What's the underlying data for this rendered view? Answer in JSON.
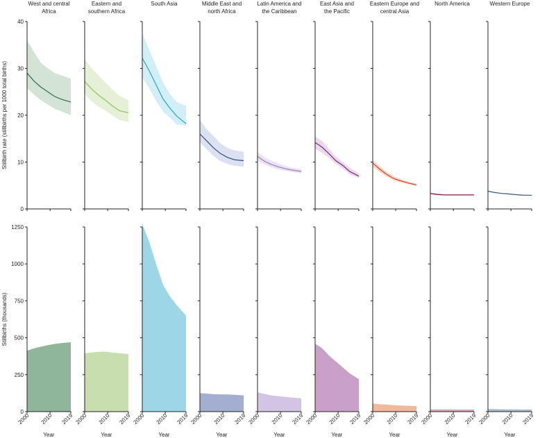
{
  "chart_data": {
    "type": "area",
    "x": [
      2000,
      2003,
      2006,
      2009,
      2012,
      2015,
      2019
    ],
    "xticks": [
      "2000",
      "2010",
      "2019"
    ],
    "xlabel": "Year",
    "regions": [
      {
        "name": "West and central Africa",
        "title_lines": [
          "West and central",
          "Africa"
        ],
        "color": "#2e6b46",
        "band": "#d3e4d6",
        "area_color": "#8fb59b",
        "rate": [
          29.0,
          27.3,
          26.0,
          25.0,
          24.0,
          23.4,
          22.8
        ],
        "lower": [
          25.8,
          24.4,
          23.2,
          22.3,
          21.4,
          20.8,
          20.0
        ],
        "upper": [
          36.0,
          33.5,
          31.2,
          30.0,
          29.0,
          28.5,
          27.8
        ],
        "stillbirths": [
          412,
          428,
          440,
          450,
          458,
          464,
          470
        ]
      },
      {
        "name": "Eastern and southern Africa",
        "title_lines": [
          "Eastern and",
          "southern Africa"
        ],
        "color": "#8ec25c",
        "band": "#e6f0d6",
        "area_color": "#c8deae",
        "rate": [
          27.2,
          25.6,
          24.3,
          23.2,
          22.0,
          21.0,
          20.5
        ],
        "lower": [
          24.5,
          23.0,
          21.8,
          21.0,
          20.0,
          19.0,
          18.6
        ],
        "upper": [
          32.0,
          30.0,
          28.5,
          27.0,
          25.5,
          24.2,
          23.2
        ],
        "stillbirths": [
          395,
          400,
          405,
          405,
          400,
          395,
          390
        ]
      },
      {
        "name": "South Asia",
        "title_lines": [
          "South Asia"
        ],
        "color": "#24a6c4",
        "band": "#d2eef6",
        "area_color": "#9dd6e6",
        "rate": [
          32.2,
          29.5,
          26.5,
          23.5,
          21.5,
          19.8,
          18.2
        ],
        "lower": [
          28.0,
          25.8,
          23.0,
          20.8,
          19.5,
          18.0,
          17.8
        ],
        "upper": [
          37.5,
          34.0,
          30.5,
          27.0,
          24.5,
          22.8,
          22.0
        ],
        "stillbirths": [
          1270,
          1150,
          1000,
          860,
          780,
          720,
          650
        ]
      },
      {
        "name": "Middle East and north Africa",
        "title_lines": [
          "Middle East and",
          "north Africa"
        ],
        "color": "#2e4f8a",
        "band": "#dbe1f0",
        "area_color": "#a3aed0",
        "rate": [
          16.0,
          14.5,
          13.0,
          11.8,
          11.0,
          10.5,
          10.3
        ],
        "lower": [
          14.3,
          12.7,
          11.3,
          10.2,
          9.6,
          9.2,
          9.0
        ],
        "upper": [
          19.0,
          17.0,
          15.5,
          14.0,
          13.0,
          12.5,
          12.2
        ],
        "stillbirths": [
          125,
          122,
          118,
          117,
          116,
          114,
          110
        ]
      },
      {
        "name": "Latin America and the Caribbean",
        "title_lines": [
          "Latin America and",
          "the Caribbean"
        ],
        "color": "#9b7cbb",
        "band": "#ebe2f2",
        "area_color": "#d3c4e3",
        "rate": [
          11.2,
          10.2,
          9.5,
          9.0,
          8.6,
          8.3,
          8.0
        ],
        "lower": [
          10.3,
          9.5,
          8.9,
          8.4,
          8.1,
          7.9,
          7.6
        ],
        "upper": [
          12.2,
          11.0,
          10.3,
          9.7,
          9.2,
          8.8,
          8.5
        ],
        "stillbirths": [
          130,
          120,
          110,
          105,
          100,
          95,
          90
        ]
      },
      {
        "name": "East Asia and the Pacific",
        "title_lines": [
          "East Asia and",
          "the Pacific"
        ],
        "color": "#7b2a78",
        "band": "#ead9ea",
        "area_color": "#c9a0c8",
        "rate": [
          14.2,
          13.2,
          11.8,
          10.3,
          9.3,
          8.0,
          7.0
        ],
        "lower": [
          12.9,
          12.0,
          10.9,
          9.6,
          8.6,
          7.4,
          6.6
        ],
        "upper": [
          15.5,
          14.5,
          12.8,
          11.2,
          10.0,
          8.8,
          7.6
        ],
        "stillbirths": [
          460,
          430,
          380,
          340,
          300,
          260,
          220
        ]
      },
      {
        "name": "Eastern Europe and central Asia",
        "title_lines": [
          "Eastern Europe and",
          "central Asia"
        ],
        "color": "#e0421c",
        "band": "#f8d8cb",
        "area_color": "#f3b79c",
        "rate": [
          9.8,
          8.5,
          7.4,
          6.5,
          6.0,
          5.6,
          5.1
        ],
        "lower": [
          9.0,
          7.9,
          6.9,
          6.1,
          5.7,
          5.3,
          4.9
        ],
        "upper": [
          10.4,
          9.1,
          7.9,
          7.0,
          6.4,
          5.9,
          5.4
        ],
        "stillbirths": [
          55,
          50,
          47,
          44,
          42,
          40,
          37
        ]
      },
      {
        "name": "North America",
        "title_lines": [
          "North America"
        ],
        "color": "#8a1538",
        "band": "#f0d8de",
        "area_color": "#d9a9b6",
        "rate": [
          3.3,
          3.1,
          3.0,
          3.0,
          3.0,
          3.0,
          3.0
        ],
        "lower": [
          3.1,
          2.9,
          2.85,
          2.85,
          2.85,
          2.85,
          2.85
        ],
        "upper": [
          3.5,
          3.3,
          3.15,
          3.15,
          3.15,
          3.15,
          3.15
        ],
        "stillbirths": [
          15,
          15,
          15,
          15,
          14,
          14,
          14
        ]
      },
      {
        "name": "Western Europe",
        "title_lines": [
          "Western Europe"
        ],
        "color": "#3e5a73",
        "band": "#dfe6ee",
        "area_color": "#a8bccc",
        "rate": [
          3.8,
          3.5,
          3.3,
          3.2,
          3.05,
          2.95,
          2.9
        ],
        "lower": [
          3.7,
          3.4,
          3.2,
          3.1,
          2.95,
          2.85,
          2.8
        ],
        "upper": [
          3.9,
          3.6,
          3.4,
          3.3,
          3.15,
          3.05,
          3.0
        ],
        "stillbirths": [
          18,
          17,
          16,
          15,
          15,
          14,
          14
        ]
      }
    ],
    "top_panel": {
      "ylabel": "Stillbirth rate (stillbirths per 1000 total births)",
      "ylim": [
        0,
        40
      ],
      "yticks": [
        "0",
        "10",
        "20",
        "30",
        "40"
      ]
    },
    "bottom_panel": {
      "ylabel": "Stillbirths (thousands)",
      "ylim": [
        0,
        1250
      ],
      "yticks": [
        "0",
        "250",
        "500",
        "750",
        "1000",
        "1250"
      ]
    }
  }
}
